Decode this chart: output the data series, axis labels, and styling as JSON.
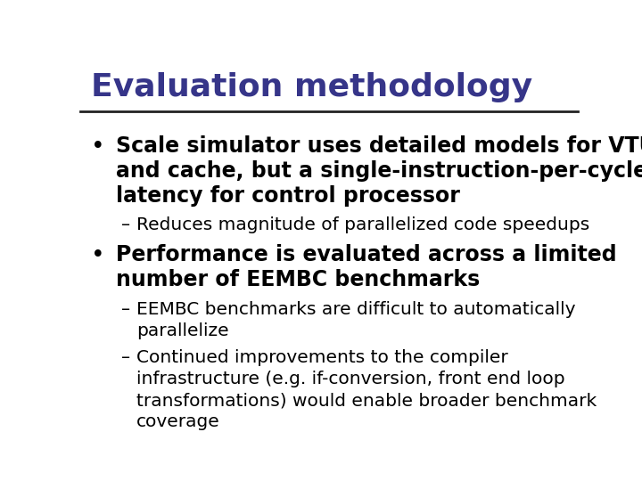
{
  "title": "Evaluation methodology",
  "title_color": "#363589",
  "title_fontsize": 26,
  "title_fontstyle": "bold",
  "bg_color": "#ffffff",
  "separator_color": "#222222",
  "bullet1_lines": [
    "Scale simulator uses detailed models for VTU",
    "and cache, but a single-instruction-per-cycle",
    "latency for control processor"
  ],
  "bullet1_sub": [
    "Reduces magnitude of parallelized code speedups"
  ],
  "bullet2_lines": [
    "Performance is evaluated across a limited",
    "number of EEMBC benchmarks"
  ],
  "bullet2_sub_a": [
    "EEMBC benchmarks are difficult to automatically",
    "parallelize"
  ],
  "bullet2_sub_b": [
    "Continued improvements to the compiler",
    "infrastructure (e.g. if-conversion, front end loop",
    "transformations) would enable broader benchmark",
    "coverage"
  ],
  "bullet_color": "#000000",
  "sub_color": "#000000",
  "bullet_fontsize": 17,
  "sub_fontsize": 14.5
}
